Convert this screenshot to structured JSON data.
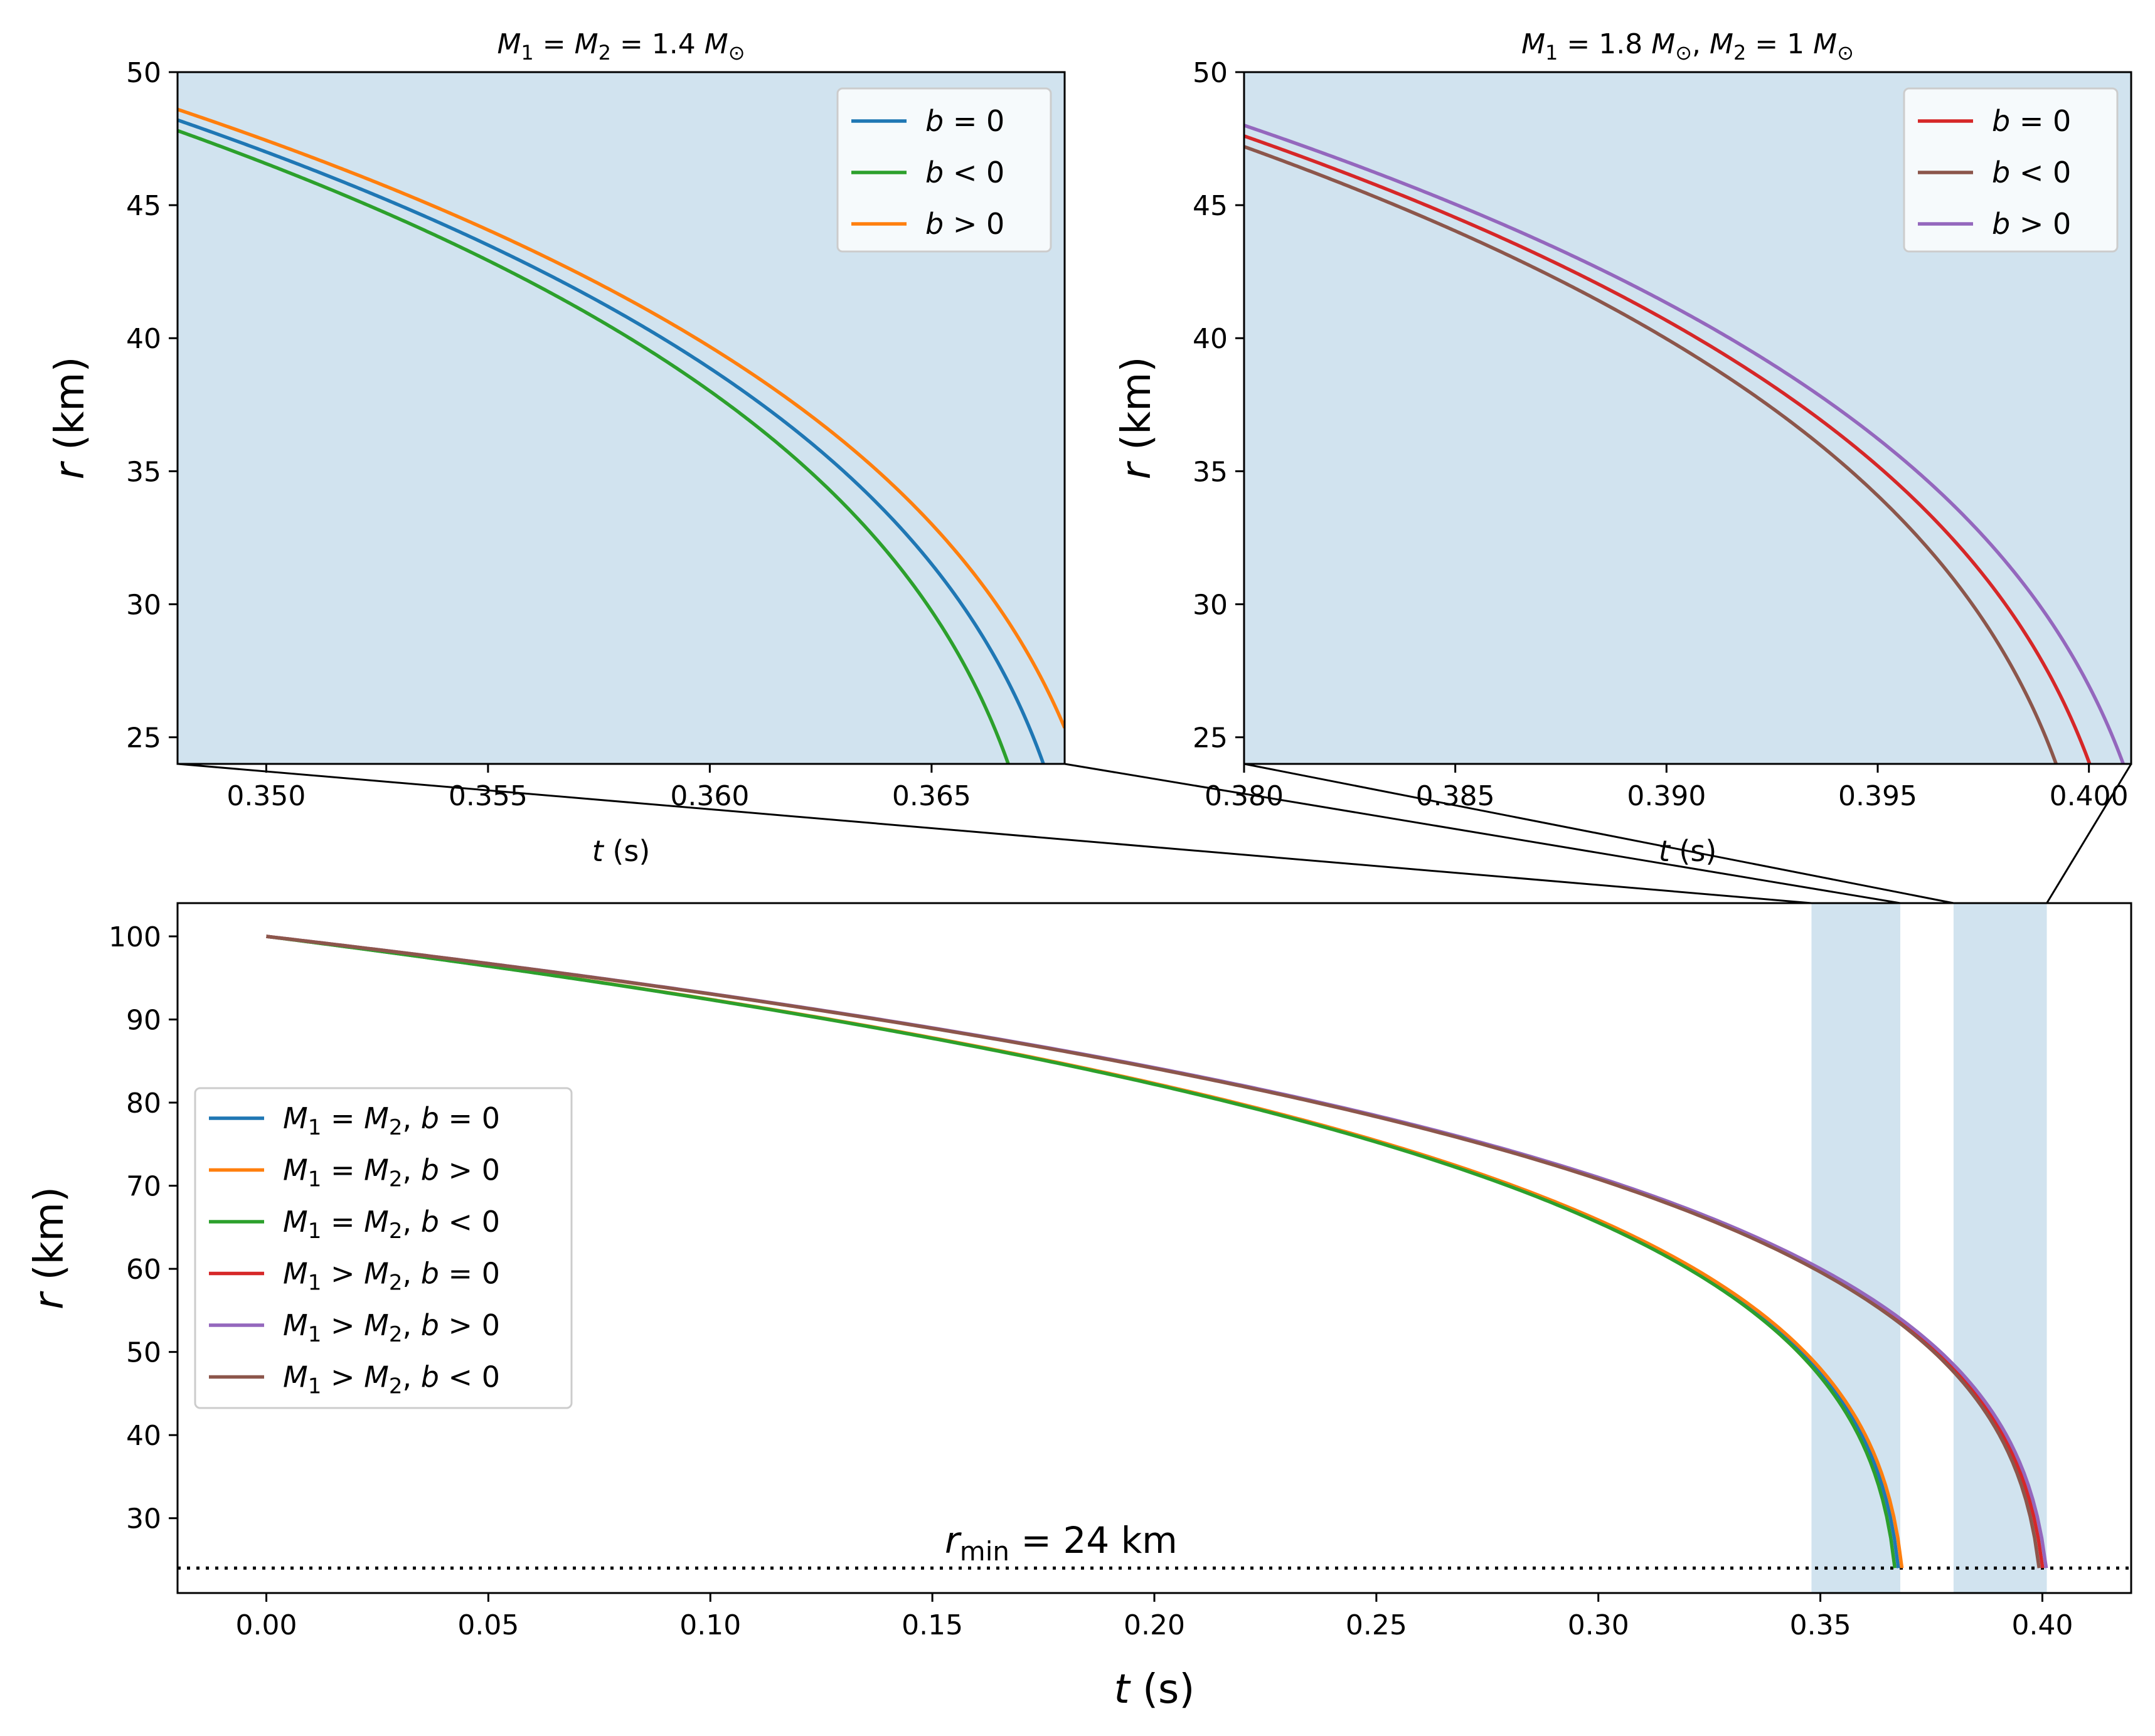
{
  "chart_data": [
    {
      "id": "inset_equal",
      "type": "line",
      "title": "$M_1 = M_2 = 1.4\\,M_{\\odot}$",
      "title_parts": {
        "m1": "M",
        "sub1": "1",
        "mid": " = ",
        "m2": "M",
        "sub2": "2",
        "val": " = 1.4 ",
        "msun": "M",
        "sunsub": "⊙"
      },
      "xlabel": "t (s)",
      "ylabel": "r (km)",
      "xlim": [
        0.348,
        0.368
      ],
      "ylim": [
        24,
        50
      ],
      "xticks": [
        "0.350",
        "0.355",
        "0.360",
        "0.365"
      ],
      "xtick_values": [
        0.35,
        0.355,
        0.36,
        0.365
      ],
      "yticks": [
        "25",
        "30",
        "35",
        "40",
        "45",
        "50"
      ],
      "ytick_values": [
        25,
        30,
        35,
        40,
        45,
        50
      ],
      "background": "#d1e3ef",
      "legend_position": "upper right",
      "series": [
        {
          "name": "b = 0",
          "color": "#1f77b4",
          "tc": 0.3688,
          "x": [
            0.348,
            0.352,
            0.356,
            0.36,
            0.363,
            0.365,
            0.3667
          ],
          "y": [
            48.2,
            45.4,
            42.1,
            37.4,
            32.8,
            28.6,
            24.0
          ]
        },
        {
          "name": "b < 0",
          "color": "#2ca02c",
          "tc": 0.368,
          "x": [
            0.348,
            0.352,
            0.356,
            0.36,
            0.363,
            0.365,
            0.3659
          ],
          "y": [
            47.8,
            44.9,
            41.4,
            36.5,
            31.5,
            26.8,
            24.0
          ]
        },
        {
          "name": "b > 0",
          "color": "#ff7f0e",
          "tc": 0.3696,
          "x": [
            0.348,
            0.352,
            0.356,
            0.36,
            0.363,
            0.365,
            0.3675
          ],
          "y": [
            48.6,
            45.8,
            42.6,
            38.2,
            33.9,
            30.1,
            24.0
          ]
        }
      ]
    },
    {
      "id": "inset_unequal",
      "type": "line",
      "title": "$M_1 = 1.8\\,M_{\\odot},\\ M_2 = 1\\,M_{\\odot}$",
      "title_parts": {
        "m1": "M",
        "sub1": "1",
        "val1": " = 1.8 ",
        "msun1": "M",
        "sunsub1": "⊙",
        "sep": ",  ",
        "m2": "M",
        "sub2": "2",
        "val2": " = 1 ",
        "msun2": "M",
        "sunsub2": "⊙"
      },
      "xlabel": "t (s)",
      "ylabel": "r (km)",
      "xlim": [
        0.38,
        0.401
      ],
      "ylim": [
        24,
        50
      ],
      "xticks": [
        "0.380",
        "0.385",
        "0.390",
        "0.395",
        "0.400"
      ],
      "xtick_values": [
        0.38,
        0.385,
        0.39,
        0.395,
        0.4
      ],
      "yticks": [
        "25",
        "30",
        "35",
        "40",
        "45",
        "50"
      ],
      "ytick_values": [
        25,
        30,
        35,
        40,
        45,
        50
      ],
      "background": "#d1e3ef",
      "legend_position": "upper right",
      "series": [
        {
          "name": "b = 0",
          "color": "#d62728",
          "tc": 0.4014,
          "x": [
            0.38,
            0.385,
            0.39,
            0.395,
            0.398,
            0.3992
          ],
          "y": [
            47.6,
            44.0,
            39.6,
            33.5,
            28.0,
            24.0
          ]
        },
        {
          "name": "b < 0",
          "color": "#8c564b",
          "tc": 0.4006,
          "x": [
            0.38,
            0.385,
            0.39,
            0.395,
            0.397,
            0.3983
          ],
          "y": [
            47.2,
            43.5,
            38.9,
            32.3,
            28.2,
            24.0
          ]
        },
        {
          "name": "b > 0",
          "color": "#9467bd",
          "tc": 0.4022,
          "x": [
            0.38,
            0.385,
            0.39,
            0.395,
            0.399,
            0.4002
          ],
          "y": [
            48.0,
            44.5,
            40.3,
            34.6,
            27.8,
            24.0
          ]
        }
      ]
    },
    {
      "id": "main",
      "type": "line",
      "title": "",
      "xlabel": "t (s)",
      "ylabel": "r (km)",
      "xlim": [
        -0.02,
        0.42
      ],
      "ylim": [
        21,
        104
      ],
      "xticks": [
        "0.00",
        "0.05",
        "0.10",
        "0.15",
        "0.20",
        "0.25",
        "0.30",
        "0.35",
        "0.40"
      ],
      "xtick_values": [
        0.0,
        0.05,
        0.1,
        0.15,
        0.2,
        0.25,
        0.3,
        0.35,
        0.4
      ],
      "yticks": [
        "30",
        "40",
        "50",
        "60",
        "70",
        "80",
        "90",
        "100"
      ],
      "ytick_values": [
        30,
        40,
        50,
        60,
        70,
        80,
        90,
        100
      ],
      "legend_position": "center left",
      "shaded_regions": [
        [
          0.348,
          0.368
        ],
        [
          0.38,
          0.401
        ]
      ],
      "shade_color": "#d1e3ef",
      "hline": {
        "y": 24,
        "style": "dotted",
        "color": "#000000"
      },
      "annotation": {
        "text_main": "r",
        "text_sub": "min",
        "text_rest": " = 24 km",
        "x": 0.15,
        "y": 24
      },
      "series": [
        {
          "name": "M1 = M2, b = 0",
          "label_parts": [
            "M",
            "1",
            " = ",
            "M",
            "2",
            ", ",
            "b",
            " = 0"
          ],
          "color": "#1f77b4",
          "tc": 0.3688,
          "x": [
            0.0,
            0.1,
            0.2,
            0.3,
            0.348,
            0.3667
          ],
          "y": [
            100,
            92.4,
            82.6,
            66.4,
            48.2,
            24
          ]
        },
        {
          "name": "M1 = M2, b > 0",
          "label_parts": [
            "M",
            "1",
            " = ",
            "M",
            "2",
            ", ",
            "b",
            " > 0"
          ],
          "color": "#ff7f0e",
          "tc": 0.3696,
          "x": [
            0.0,
            0.1,
            0.2,
            0.3,
            0.348,
            0.3675
          ],
          "y": [
            100,
            92.5,
            82.7,
            66.7,
            48.6,
            24
          ]
        },
        {
          "name": "M1 = M2, b < 0",
          "label_parts": [
            "M",
            "1",
            " = ",
            "M",
            "2",
            ", ",
            "b",
            " < 0"
          ],
          "color": "#2ca02c",
          "tc": 0.368,
          "x": [
            0.0,
            0.1,
            0.2,
            0.3,
            0.348,
            0.3659
          ],
          "y": [
            100,
            92.3,
            82.5,
            66.1,
            47.8,
            24
          ]
        },
        {
          "name": "M1 > M2, b = 0",
          "label_parts": [
            "M",
            "1",
            " > ",
            "M",
            "2",
            ", ",
            "b",
            " = 0"
          ],
          "color": "#d62728",
          "tc": 0.4014,
          "x": [
            0.0,
            0.1,
            0.2,
            0.3,
            0.38,
            0.3992
          ],
          "y": [
            100,
            93.0,
            84.4,
            70.8,
            47.6,
            24
          ]
        },
        {
          "name": "M1 > M2, b > 0",
          "label_parts": [
            "M",
            "1",
            " > ",
            "M",
            "2",
            ", ",
            "b",
            " > 0"
          ],
          "color": "#9467bd",
          "tc": 0.4022,
          "x": [
            0.0,
            0.1,
            0.2,
            0.3,
            0.38,
            0.4002
          ],
          "y": [
            100,
            93.1,
            84.5,
            71.0,
            48.0,
            24
          ]
        },
        {
          "name": "M1 > M2, b < 0",
          "label_parts": [
            "M",
            "1",
            " > ",
            "M",
            "2",
            ", ",
            "b",
            " < 0"
          ],
          "color": "#8c564b",
          "tc": 0.4006,
          "x": [
            0.0,
            0.1,
            0.2,
            0.3,
            0.38,
            0.3983
          ],
          "y": [
            100,
            93.0,
            84.3,
            70.6,
            47.2,
            24
          ]
        }
      ]
    }
  ]
}
